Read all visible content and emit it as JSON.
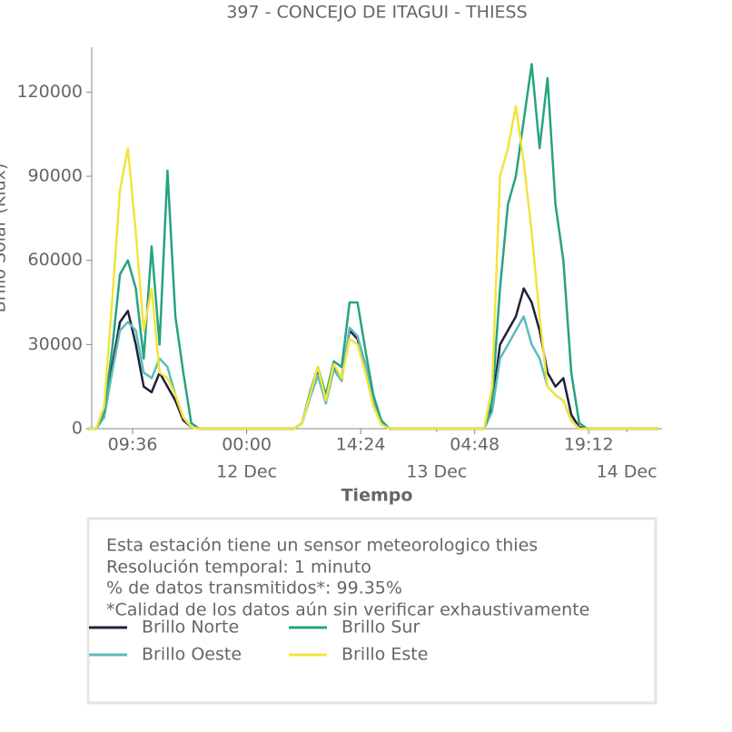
{
  "chart_data": {
    "type": "line",
    "title": "397 - CONCEJO DE ITAGUI - THIESS",
    "ylabel": "Brillo Solar (Klux)",
    "xlabel": "Tiempo",
    "x": [
      "11 Dec 04:00",
      "11 Dec 05:00",
      "11 Dec 06:00",
      "11 Dec 07:00",
      "11 Dec 08:00",
      "11 Dec 09:00",
      "11 Dec 10:00",
      "11 Dec 11:00",
      "11 Dec 12:00",
      "11 Dec 13:00",
      "11 Dec 14:00",
      "11 Dec 15:00",
      "11 Dec 16:00",
      "11 Dec 17:00",
      "11 Dec 18:00",
      "11 Dec 19:00",
      "11 Dec 20:00",
      "11 Dec 21:00",
      "11 Dec 22:00",
      "11 Dec 23:00",
      "12 Dec 00:00",
      "12 Dec 01:00",
      "12 Dec 02:00",
      "12 Dec 03:00",
      "12 Dec 04:00",
      "12 Dec 05:00",
      "12 Dec 06:00",
      "12 Dec 07:00",
      "12 Dec 08:00",
      "12 Dec 09:00",
      "12 Dec 10:00",
      "12 Dec 11:00",
      "12 Dec 12:00",
      "12 Dec 13:00",
      "12 Dec 14:00",
      "12 Dec 15:00",
      "12 Dec 16:00",
      "12 Dec 17:00",
      "12 Dec 18:00",
      "12 Dec 19:00",
      "12 Dec 20:00",
      "12 Dec 21:00",
      "12 Dec 22:00",
      "12 Dec 23:00",
      "13 Dec 00:00",
      "13 Dec 01:00",
      "13 Dec 02:00",
      "13 Dec 03:00",
      "13 Dec 04:00",
      "13 Dec 05:00",
      "13 Dec 06:00",
      "13 Dec 07:00",
      "13 Dec 08:00",
      "13 Dec 09:00",
      "13 Dec 10:00",
      "13 Dec 11:00",
      "13 Dec 12:00",
      "13 Dec 13:00",
      "13 Dec 14:00",
      "13 Dec 15:00",
      "13 Dec 16:00",
      "13 Dec 17:00",
      "13 Dec 18:00",
      "13 Dec 19:00",
      "13 Dec 20:00",
      "13 Dec 21:00",
      "13 Dec 22:00",
      "13 Dec 23:00",
      "14 Dec 00:00",
      "14 Dec 01:00",
      "14 Dec 02:00",
      "14 Dec 03:00",
      "14 Dec 04:00"
    ],
    "series": [
      {
        "name": "Brillo Norte",
        "color": "#20203c",
        "values": [
          0,
          0,
          5000,
          22000,
          38000,
          42000,
          30000,
          15000,
          13000,
          20000,
          15000,
          10000,
          3000,
          500,
          0,
          0,
          0,
          0,
          0,
          0,
          0,
          0,
          0,
          0,
          0,
          0,
          0,
          2000,
          12000,
          20000,
          10000,
          22000,
          18000,
          35000,
          32000,
          22000,
          10000,
          2000,
          0,
          0,
          0,
          0,
          0,
          0,
          0,
          0,
          0,
          0,
          0,
          0,
          0,
          8000,
          30000,
          35000,
          40000,
          50000,
          45000,
          35000,
          20000,
          15000,
          18000,
          5000,
          500,
          0,
          0,
          0,
          0,
          0,
          0,
          0,
          0,
          0,
          0
        ]
      },
      {
        "name": "Brillo Oeste",
        "color": "#5bbcbc",
        "values": [
          0,
          0,
          4000,
          20000,
          35000,
          38000,
          35000,
          20000,
          18000,
          25000,
          22000,
          12000,
          4000,
          500,
          0,
          0,
          0,
          0,
          0,
          0,
          0,
          0,
          0,
          0,
          0,
          0,
          0,
          2000,
          11000,
          19000,
          9000,
          21000,
          17000,
          36000,
          33000,
          23000,
          10000,
          2000,
          0,
          0,
          0,
          0,
          0,
          0,
          0,
          0,
          0,
          0,
          0,
          0,
          0,
          6000,
          25000,
          30000,
          35000,
          40000,
          30000,
          25000,
          15000,
          12000,
          10000,
          3000,
          0,
          0,
          0,
          0,
          0,
          0,
          0,
          0,
          0,
          0,
          0
        ]
      },
      {
        "name": "Brillo Sur",
        "color": "#26a383",
        "values": [
          0,
          0,
          6000,
          28000,
          55000,
          60000,
          50000,
          25000,
          65000,
          30000,
          92000,
          40000,
          20000,
          2000,
          0,
          0,
          0,
          0,
          0,
          0,
          0,
          0,
          0,
          0,
          0,
          0,
          0,
          2000,
          13000,
          22000,
          12000,
          24000,
          22000,
          45000,
          45000,
          28000,
          12000,
          3000,
          0,
          0,
          0,
          0,
          0,
          0,
          0,
          0,
          0,
          0,
          0,
          0,
          0,
          10000,
          50000,
          80000,
          90000,
          110000,
          130000,
          100000,
          125000,
          80000,
          60000,
          20000,
          2000,
          0,
          0,
          0,
          0,
          0,
          0,
          0,
          0,
          0,
          0
        ]
      },
      {
        "name": "Brillo Este",
        "color": "#f3e43c",
        "values": [
          0,
          0,
          8000,
          45000,
          85000,
          100000,
          70000,
          35000,
          50000,
          20000,
          18000,
          12000,
          4000,
          500,
          0,
          0,
          0,
          0,
          0,
          0,
          0,
          0,
          0,
          0,
          0,
          0,
          0,
          2000,
          12000,
          22000,
          10000,
          23000,
          18000,
          32000,
          30000,
          20000,
          8000,
          1500,
          0,
          0,
          0,
          0,
          0,
          0,
          0,
          0,
          0,
          0,
          0,
          0,
          0,
          15000,
          90000,
          100000,
          115000,
          95000,
          70000,
          40000,
          15000,
          12000,
          10000,
          3000,
          0,
          0,
          0,
          0,
          0,
          0,
          0,
          0,
          0,
          0,
          0
        ]
      }
    ],
    "xlim": [
      "11 Dec 04:26",
      "14 Dec 04:28"
    ],
    "xticks": [
      {
        "value": "11 Dec 09:36",
        "label": "09:36"
      },
      {
        "value": "12 Dec 00:00",
        "label": "00:00"
      },
      {
        "value": "12 Dec 14:24",
        "label": "14:24"
      },
      {
        "value": "13 Dec 04:48",
        "label": "04:48"
      },
      {
        "value": "13 Dec 19:12",
        "label": "19:12"
      }
    ],
    "xticks_secondary": [
      {
        "value": "12 Dec 00:00",
        "label": "12 Dec"
      },
      {
        "value": "13 Dec 00:00",
        "label": "13 Dec"
      },
      {
        "value": "14 Dec 00:00",
        "label": "14 Dec"
      }
    ],
    "ylim": [
      0,
      136000
    ],
    "yticks": [
      0,
      30000,
      60000,
      90000,
      120000
    ],
    "info": [
      "Esta estación tiene un sensor meteorologico thies",
      "Resolución temporal: 1 minuto",
      "% de datos transmitidos*: 99.35%",
      "*Calidad de los datos aún sin verificar exhaustivamente"
    ]
  }
}
